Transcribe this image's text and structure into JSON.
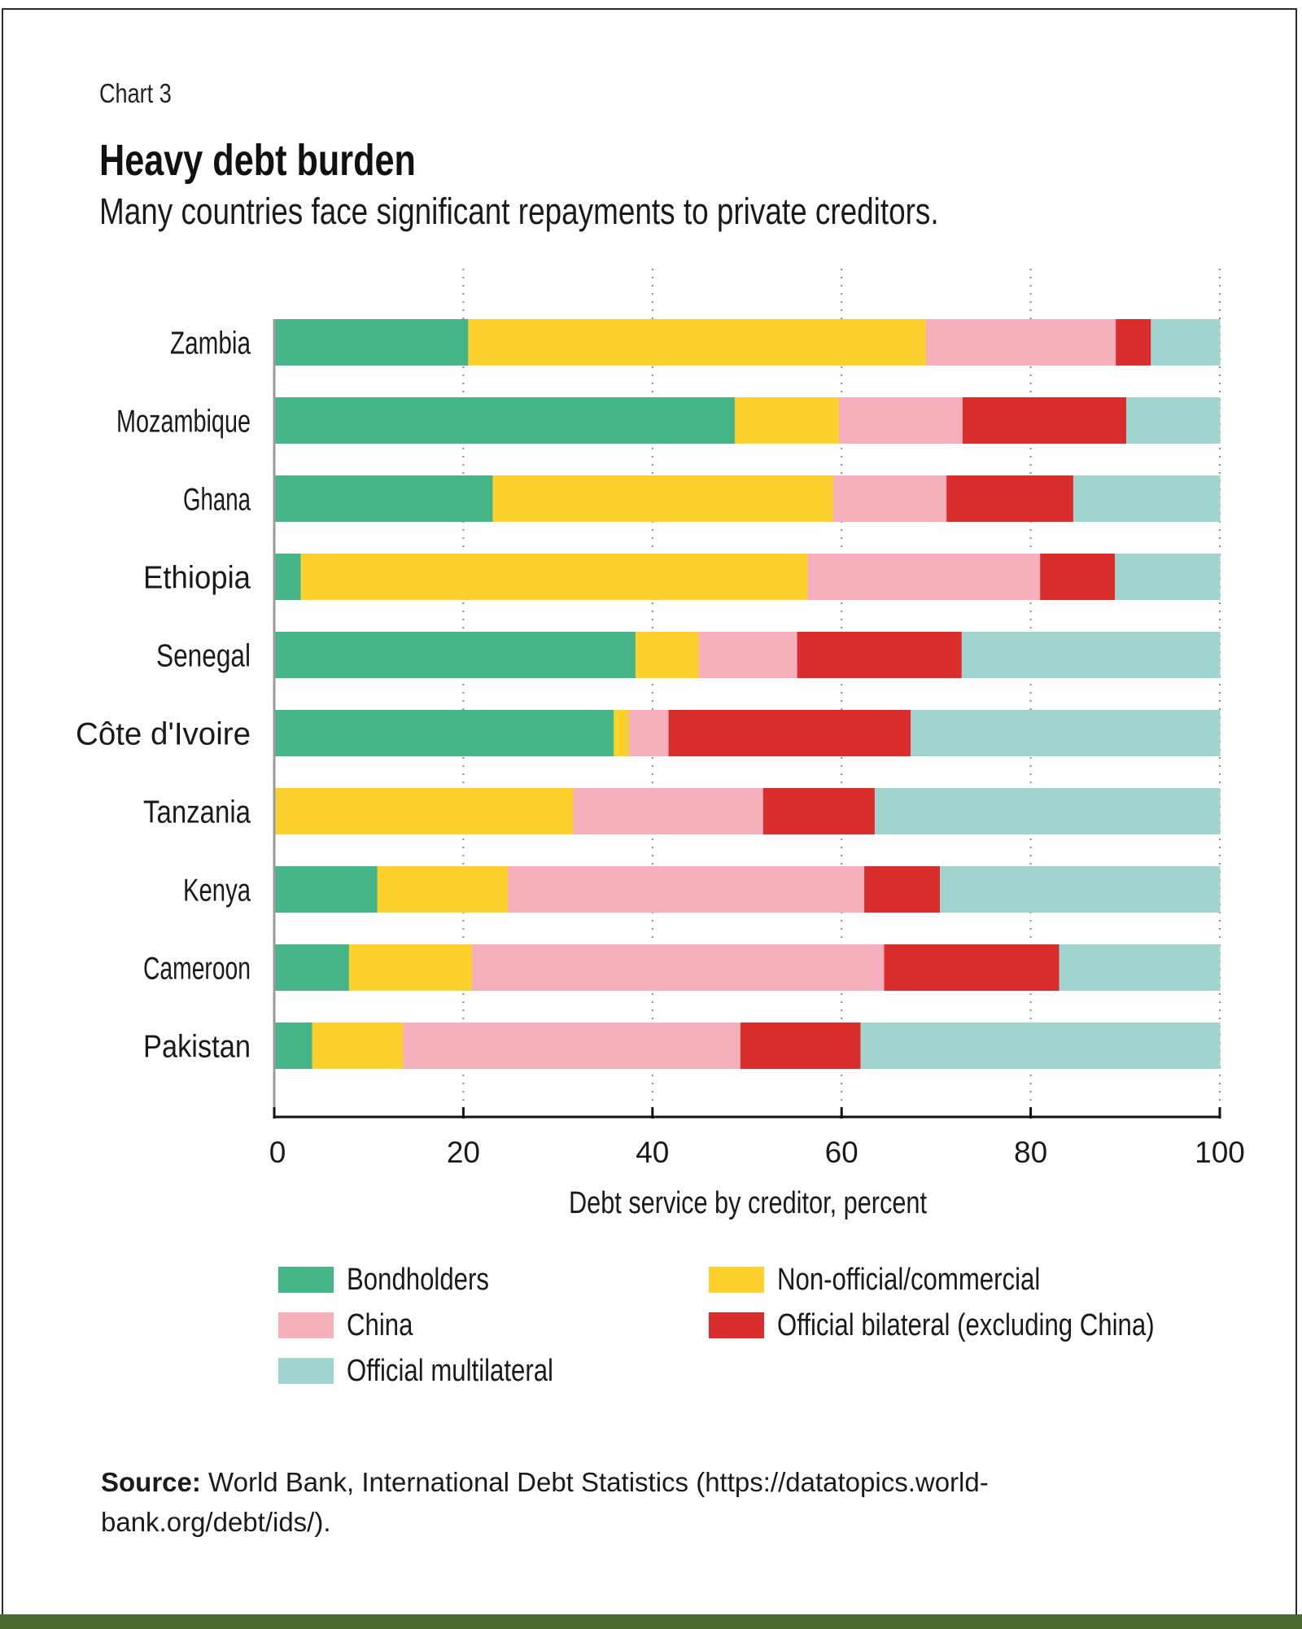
{
  "header": {
    "chart_number": "Chart 3",
    "title": "Heavy debt burden",
    "subtitle": "Many countries face significant repayments to private creditors."
  },
  "colors": {
    "bondholders": "#45b487",
    "non_official": "#fdd12d",
    "china": "#f6b0bb",
    "official_bilateral": "#d92e2d",
    "official_multilateral": "#a1d4ce",
    "bottom_bar": "#4a6b2f"
  },
  "legend": [
    {
      "label": "Bondholders",
      "color_key": "bondholders"
    },
    {
      "label": "Non-official/commercial",
      "color_key": "non_official"
    },
    {
      "label": "China",
      "color_key": "china"
    },
    {
      "label": "Official bilateral (excluding China)",
      "color_key": "official_bilateral"
    },
    {
      "label": "Official multilateral",
      "color_key": "official_multilateral"
    }
  ],
  "source": {
    "label": "Source:",
    "text": "World Bank, International Debt Statistics (https://datatopics.world-bank.org/debt/ids/)."
  },
  "chart_data": {
    "type": "bar",
    "orientation": "horizontal",
    "stacked": true,
    "title": "Heavy debt burden",
    "subtitle": "Many countries face significant repayments to private creditors.",
    "xlabel": "Debt service by creditor, percent",
    "ylabel": "",
    "xlim": [
      0,
      100
    ],
    "xticks": [
      0,
      20,
      40,
      60,
      80,
      100
    ],
    "grid": "vertical dotted",
    "legend_position": "bottom",
    "categories": [
      "Zambia",
      "Mozambique",
      "Ghana",
      "Ethiopia",
      "Senegal",
      "Côte d'Ivoire",
      "Tanzania",
      "Kenya",
      "Cameroon",
      "Pakistan"
    ],
    "series": [
      {
        "name": "Bondholders",
        "color_key": "bondholders",
        "values": [
          20.5,
          48.7,
          23.1,
          2.8,
          38.2,
          35.9,
          0,
          10.9,
          7.9,
          4.0
        ]
      },
      {
        "name": "Non-official/commercial",
        "color_key": "non_official",
        "values": [
          48.4,
          11.0,
          36.0,
          53.6,
          6.7,
          1.6,
          31.6,
          13.8,
          13.0,
          9.6
        ]
      },
      {
        "name": "China",
        "color_key": "china",
        "values": [
          20.1,
          13.1,
          12.0,
          24.6,
          10.4,
          4.2,
          20.1,
          37.7,
          43.6,
          35.7
        ]
      },
      {
        "name": "Official bilateral (excluding China)",
        "color_key": "official_bilateral",
        "values": [
          3.7,
          17.3,
          13.4,
          7.9,
          17.4,
          25.6,
          11.8,
          8.0,
          18.5,
          12.7
        ]
      },
      {
        "name": "Official multilateral",
        "color_key": "official_multilateral",
        "values": [
          7.3,
          9.9,
          15.5,
          11.1,
          27.3,
          32.7,
          36.5,
          29.6,
          17.0,
          38.0
        ]
      }
    ]
  }
}
